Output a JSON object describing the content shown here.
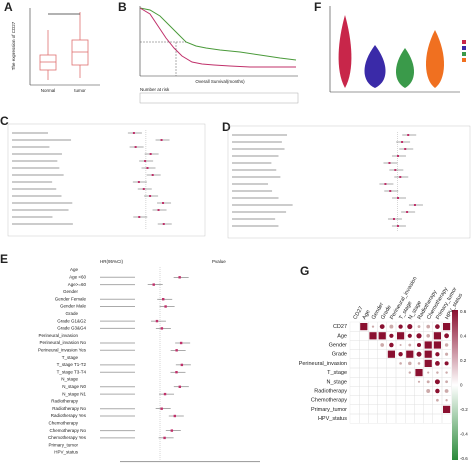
{
  "panels": {
    "A": {
      "letter": "A",
      "ylabel": "The expression of CD27",
      "groups": [
        "Normal",
        "tumor"
      ]
    },
    "B": {
      "letter": "B",
      "xlabel": "Overall Survival(months)",
      "risk_title": "Number at risk"
    },
    "C": {
      "letter": "C"
    },
    "D": {
      "letter": "D"
    },
    "E": {
      "letter": "E",
      "headers": [
        "HR(95%CI)",
        "Pvalue"
      ],
      "rows": [
        "Age",
        "Age <60",
        "Age>=60",
        "Gender",
        "Gender Female",
        "Gender Male",
        "Grade",
        "Grade G1&G2",
        "Grade G3&G4",
        "Perineural_invasion",
        "Perineural_invasion No",
        "Perineural_invasion Yes",
        "T_stage",
        "T_stage T1-T2",
        "T_stage T3-T4",
        "N_stage",
        "N_stage N0",
        "N_stage N1",
        "Radiotherapy",
        "Radiotherapy No",
        "Radiotherapy Yes",
        "Chemotherapy",
        "Chemotherapy No",
        "Chemotherapy Yes",
        "Primary_tumor",
        "HPV_status"
      ]
    },
    "F": {
      "letter": "F"
    },
    "G": {
      "letter": "G",
      "vars": [
        "CD27",
        "Age",
        "Gender",
        "Grade",
        "Perineural_invasion",
        "T_stage",
        "N_stage",
        "Radiotherapy",
        "Chemotherapy",
        "Primary_tumor",
        "HPV_status"
      ],
      "colorbar": [
        "0.6",
        "0.4",
        "0.2",
        "0",
        "-0.2",
        "-0.4",
        "-0.6"
      ]
    }
  }
}
